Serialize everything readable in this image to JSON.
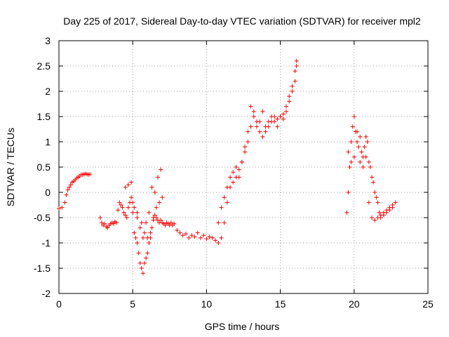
{
  "chart_data": {
    "type": "scatter",
    "title": "Day 225 of 2017, Sidereal Day-to-day VTEC variation (SDTVAR) for receiver mpl2",
    "xlabel": "GPS time / hours",
    "ylabel": "SDTVAR / TECUs",
    "xlim": [
      0,
      25
    ],
    "ylim": [
      -2,
      3
    ],
    "xticks": [
      0,
      5,
      10,
      15,
      20,
      25
    ],
    "yticks": [
      -2,
      -1.5,
      -1,
      -0.5,
      0,
      0.5,
      1,
      1.5,
      2,
      2.5,
      3
    ],
    "xtick_labels": [
      "0",
      "5",
      "10",
      "15",
      "20",
      "25"
    ],
    "ytick_labels": [
      "-2",
      "-1.5",
      "-1",
      "-0.5",
      "0",
      "0.5",
      "1",
      "1.5",
      "2",
      "2.5",
      "3"
    ],
    "grid": true,
    "marker": "+",
    "color": "#ff0000",
    "series": [
      {
        "name": "mpl2",
        "x": [
          0.0,
          0.2,
          0.4,
          0.5,
          0.6,
          0.7,
          0.8,
          0.9,
          1.0,
          1.1,
          1.2,
          1.3,
          1.4,
          1.5,
          1.6,
          1.7,
          1.8,
          1.9,
          2.0,
          2.1,
          2.8,
          2.9,
          3.0,
          3.1,
          3.2,
          3.3,
          3.4,
          3.5,
          3.6,
          3.7,
          3.8,
          3.9,
          4.0,
          4.1,
          4.2,
          4.3,
          4.4,
          4.5,
          4.6,
          4.7,
          4.8,
          4.9,
          5.0,
          5.1,
          5.2,
          5.3,
          5.4,
          5.5,
          5.6,
          5.7,
          5.8,
          5.9,
          6.0,
          6.1,
          6.2,
          6.3,
          6.4,
          6.5,
          6.6,
          6.7,
          6.8,
          6.9,
          7.0,
          7.1,
          7.2,
          7.3,
          7.4,
          7.5,
          7.6,
          7.7,
          7.8,
          8.0,
          8.2,
          8.4,
          8.6,
          8.8,
          9.0,
          9.2,
          9.4,
          9.6,
          9.8,
          10.0,
          10.2,
          10.4,
          10.6,
          10.8,
          11.0,
          11.2,
          11.4,
          11.6,
          11.8,
          12.0,
          12.2,
          12.4,
          12.6,
          12.8,
          13.0,
          13.2,
          13.4,
          13.6,
          13.8,
          14.0,
          14.2,
          14.4,
          14.6,
          14.8,
          15.0,
          15.2,
          15.4,
          15.6,
          15.8,
          16.0,
          16.1,
          4.5,
          4.7,
          4.9,
          5.1,
          5.3,
          5.5,
          5.7,
          5.9,
          6.1,
          6.3,
          6.5,
          6.7,
          6.9,
          5.0,
          5.3,
          5.6,
          5.8,
          6.0,
          6.2,
          6.4,
          6.6,
          6.8,
          7.0,
          10.8,
          11.0,
          11.2,
          11.4,
          11.6,
          11.8,
          12.0,
          12.2,
          12.4,
          12.6,
          12.8,
          13.0,
          13.2,
          13.4,
          13.6,
          13.8,
          14.0,
          14.2,
          14.4,
          14.6,
          14.8,
          15.0,
          15.2,
          15.4,
          15.6,
          15.8,
          16.0,
          16.1,
          19.5,
          19.6,
          19.7,
          19.8,
          19.9,
          20.0,
          20.1,
          20.2,
          20.3,
          20.4,
          20.5,
          20.6,
          20.7,
          20.8,
          20.9,
          21.0,
          21.1,
          21.2,
          21.3,
          21.4,
          21.5,
          21.6,
          21.7,
          21.8,
          22.0,
          22.2,
          22.4,
          22.6,
          22.8,
          19.6,
          19.8,
          20.0,
          20.2,
          20.4,
          20.6,
          20.8,
          21.0,
          21.2,
          21.4,
          21.6,
          21.8,
          22.0,
          22.2,
          22.4,
          22.6
        ],
        "y": [
          -0.32,
          -0.3,
          -0.2,
          -0.05,
          0.05,
          0.1,
          0.15,
          0.2,
          0.22,
          0.25,
          0.28,
          0.3,
          0.32,
          0.35,
          0.35,
          0.36,
          0.37,
          0.36,
          0.35,
          0.36,
          -0.5,
          -0.6,
          -0.65,
          -0.62,
          -0.68,
          -0.7,
          -0.65,
          -0.62,
          -0.6,
          -0.62,
          -0.58,
          -0.6,
          -0.35,
          -0.2,
          -0.25,
          -0.3,
          -0.4,
          -0.45,
          -0.5,
          -0.3,
          -0.2,
          -0.1,
          -0.4,
          -0.8,
          -0.9,
          -1.0,
          -1.2,
          -1.4,
          -1.5,
          -1.6,
          -1.4,
          -1.3,
          -1.2,
          -1.0,
          -0.9,
          -0.7,
          -0.55,
          -0.45,
          -0.5,
          -0.55,
          -0.6,
          -0.55,
          -0.6,
          -0.62,
          -0.65,
          -0.6,
          -0.62,
          -0.65,
          -0.6,
          -0.65,
          -0.62,
          -0.75,
          -0.8,
          -0.85,
          -0.82,
          -0.9,
          -0.85,
          -0.88,
          -0.8,
          -0.9,
          -0.85,
          -0.92,
          -0.88,
          -0.9,
          -0.95,
          -1.0,
          -0.9,
          -0.6,
          -0.2,
          0.1,
          0.2,
          0.3,
          0.45,
          0.6,
          0.9,
          1.2,
          1.7,
          1.5,
          1.3,
          1.4,
          1.6,
          1.2,
          1.3,
          1.4,
          1.5,
          1.45,
          1.5,
          1.55,
          1.7,
          1.9,
          2.1,
          2.4,
          2.6,
          0.1,
          0.15,
          0.2,
          -0.3,
          -0.5,
          -0.7,
          -0.9,
          -0.6,
          -0.4,
          0.1,
          0.0,
          0.3,
          0.45,
          -0.2,
          -0.4,
          -0.6,
          -0.8,
          -0.9,
          -0.8,
          -0.5,
          -0.3,
          -0.2,
          -0.1,
          -0.6,
          -0.3,
          -0.1,
          0.1,
          0.3,
          0.4,
          0.5,
          0.3,
          0.6,
          0.8,
          1.0,
          1.3,
          1.6,
          1.4,
          1.2,
          1.1,
          1.3,
          1.4,
          1.5,
          1.4,
          1.3,
          1.5,
          1.45,
          1.6,
          1.8,
          2.0,
          2.2,
          2.5,
          -0.4,
          0.0,
          0.5,
          1.0,
          1.3,
          1.5,
          1.2,
          1.0,
          0.9,
          1.1,
          0.8,
          0.7,
          0.9,
          1.1,
          1.0,
          0.6,
          0.5,
          0.3,
          0.2,
          0.0,
          -0.1,
          -0.2,
          -0.4,
          -0.5,
          -0.45,
          -0.4,
          -0.35,
          -0.3,
          -0.2,
          0.8,
          0.6,
          0.7,
          1.2,
          0.6,
          0.5,
          0.7,
          -0.2,
          -0.5,
          -0.55,
          -0.5,
          -0.45,
          -0.4,
          -0.35,
          -0.3,
          -0.25
        ]
      }
    ]
  }
}
